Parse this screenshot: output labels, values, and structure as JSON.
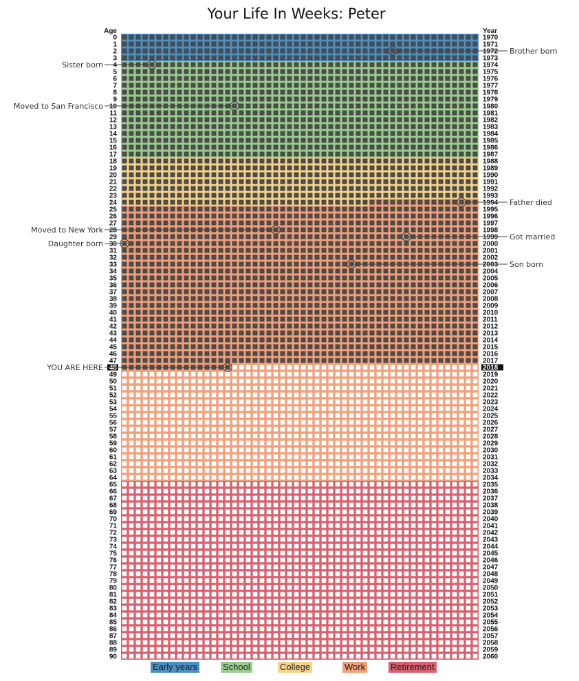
{
  "chart_data": {
    "type": "heatmap",
    "title": "Your Life In Weeks: Peter",
    "ylabel_left": "Age",
    "ylabel_right": "Year",
    "birth_year": 1970,
    "max_age": 90,
    "weeks_per_year": 52,
    "current_age": 48,
    "current_year": 2018,
    "current_week": 15,
    "phases": [
      {
        "name": "Early years",
        "start_age": 0,
        "end_age": 3,
        "color": "#4a90c4"
      },
      {
        "name": "School",
        "start_age": 4,
        "end_age": 17,
        "color": "#9acc8f"
      },
      {
        "name": "College",
        "start_age": 18,
        "end_age": 24,
        "end_week": 35,
        "color": "#f5d48a"
      },
      {
        "name": "Work",
        "start_age": 24,
        "start_week": 35,
        "end_age": 64,
        "color": "#f0a07a"
      },
      {
        "name": "Retirement",
        "start_age": 65,
        "end_age": 90,
        "color": "#d9606e"
      }
    ],
    "events": [
      {
        "label": "Brother born",
        "age": 2,
        "week": 39,
        "side": "right"
      },
      {
        "label": "Sister born",
        "age": 4,
        "week": 4,
        "side": "left"
      },
      {
        "label": "Moved to San Francisco",
        "age": 10,
        "week": 16,
        "side": "left"
      },
      {
        "label": "Father died",
        "age": 24,
        "week": 49,
        "side": "right"
      },
      {
        "label": "Moved to New York",
        "age": 28,
        "week": 22,
        "side": "left"
      },
      {
        "label": "Got married",
        "age": 29,
        "week": 41,
        "side": "right"
      },
      {
        "label": "Daughter born",
        "age": 30,
        "week": 0,
        "side": "left"
      },
      {
        "label": "Son born",
        "age": 33,
        "week": 33,
        "side": "right"
      },
      {
        "label": "YOU ARE HERE",
        "age": 48,
        "week": 15,
        "side": "left"
      }
    ]
  },
  "legend": {
    "early_years": "Early years",
    "school": "School",
    "college": "College",
    "work": "Work",
    "retirement": "Retirement"
  }
}
